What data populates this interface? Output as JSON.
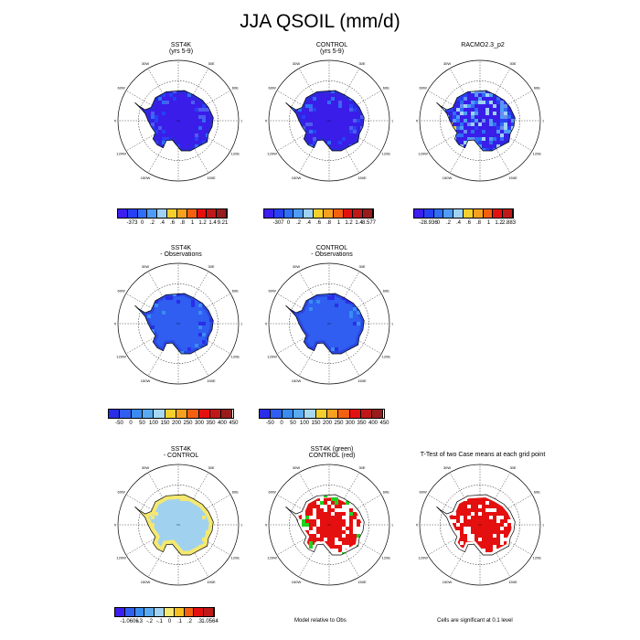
{
  "figure": {
    "title": "JJA QSOIL (mm/d)"
  },
  "chart_data": [
    {
      "id": "p1",
      "type": "map",
      "title": [
        "SST4K",
        "(yrs 5-9)"
      ],
      "field": "blue",
      "colorbar": {
        "colors": [
          "#3c1ef0",
          "#2840f5",
          "#2f6ef6",
          "#4f9cf6",
          "#9fd2f4",
          "#f5d02c",
          "#f5a020",
          "#f46010",
          "#e41010",
          "#c01818",
          "#981c1c"
        ],
        "labels": [
          "-373",
          "0",
          ".2",
          ".4",
          ".6",
          ".8",
          "1",
          "1.2",
          "1.4",
          "9.21"
        ]
      }
    },
    {
      "id": "p2",
      "type": "map",
      "title": [
        "CONTROL",
        "(yrs 5-9)"
      ],
      "field": "blue",
      "colorbar": {
        "colors": [
          "#3c1ef0",
          "#2840f5",
          "#2f6ef6",
          "#4f9cf6",
          "#9fd2f4",
          "#f5d02c",
          "#f5a020",
          "#f46010",
          "#e41010",
          "#c01818",
          "#981c1c"
        ],
        "labels": [
          "-307",
          "0",
          ".2",
          ".4",
          ".6",
          ".8",
          "1",
          "1.2",
          "1.4",
          "8.577"
        ]
      }
    },
    {
      "id": "p3",
      "type": "map",
      "title": [
        "RACMO2.3_p2"
      ],
      "field": "racmo",
      "colorbar": {
        "colors": [
          "#3c1ef0",
          "#2840f5",
          "#2f6ef6",
          "#4f9cf6",
          "#9fd2f4",
          "#f5d02c",
          "#f5a020",
          "#f46010",
          "#e41010",
          "#c01818"
        ],
        "labels": [
          "-28.936",
          "0",
          ".2",
          ".4",
          ".6",
          ".8",
          "1",
          "1.2",
          "2.883"
        ]
      }
    },
    {
      "id": "p4",
      "type": "map",
      "title": [
        "SST4K",
        "- Observations"
      ],
      "field": "bias",
      "colorbar": {
        "colors": [
          "#2a2ee8",
          "#2f5ef0",
          "#3a8cf2",
          "#5aaaf2",
          "#a6d8f2",
          "#f5d02c",
          "#f5a020",
          "#f46010",
          "#e41010",
          "#c01818",
          "#981c1c"
        ],
        "labels": [
          "-50",
          "0",
          "50",
          "100",
          "150",
          "200",
          "250",
          "300",
          "350",
          "400",
          "450"
        ]
      }
    },
    {
      "id": "p5",
      "type": "map",
      "title": [
        "CONTROL",
        "- Observations"
      ],
      "field": "bias",
      "colorbar": {
        "colors": [
          "#2a2ee8",
          "#2f5ef0",
          "#3a8cf2",
          "#5aaaf2",
          "#a6d8f2",
          "#f5d02c",
          "#f5a020",
          "#f46010",
          "#e41010",
          "#c01818",
          "#981c1c"
        ],
        "labels": [
          "-50",
          "0",
          "50",
          "100",
          "150",
          "200",
          "250",
          "300",
          "350",
          "400",
          "450"
        ]
      }
    },
    {
      "id": "p6",
      "type": "map",
      "title": [
        "SST4K",
        "- CONTROL"
      ],
      "field": "diff",
      "colorbar": {
        "colors": [
          "#3c1ef0",
          "#2f5ef0",
          "#3a8cf2",
          "#5aaaf2",
          "#9fd2f4",
          "#f5e870",
          "#f5c020",
          "#f46010",
          "#e41010",
          "#c01818"
        ],
        "labels": [
          "-1.0606",
          "-.3",
          "-.2",
          "-.1",
          "0",
          ".1",
          ".2",
          ".3",
          "1.0564"
        ]
      }
    },
    {
      "id": "p7",
      "type": "map",
      "title": [
        "SST4K (green)",
        "CONTROL (red)"
      ],
      "field": "sig2",
      "footnote": "Model relative to Obs"
    },
    {
      "id": "p8",
      "type": "map",
      "title": [
        "T-Test of two Case means at each grid point"
      ],
      "field": "sig1",
      "footnote": "Cells are significant at 0.1 level"
    }
  ],
  "map_labels": {
    "lon": [
      "0",
      "30E",
      "60E",
      "90E",
      "120E",
      "150E",
      "180",
      "150W",
      "120W",
      "90W",
      "60W",
      "30W"
    ]
  }
}
